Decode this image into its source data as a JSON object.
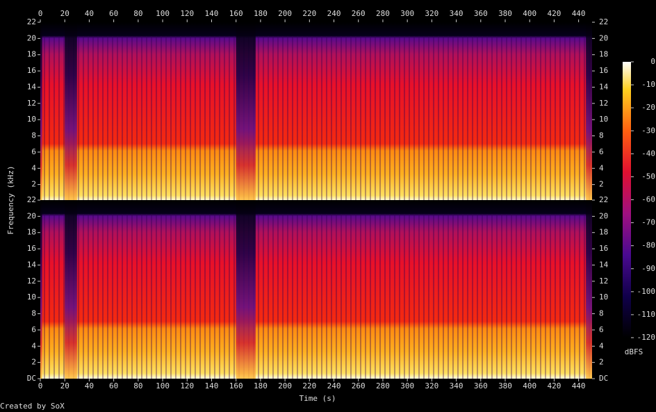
{
  "chart_data": {
    "type": "spectrogram",
    "xlabel": "Time (s)",
    "ylabel": "Frequency (kHz)",
    "xlim": [
      0,
      451
    ],
    "xticks": [
      0,
      20,
      40,
      60,
      80,
      100,
      120,
      140,
      160,
      180,
      200,
      220,
      240,
      260,
      280,
      300,
      320,
      340,
      360,
      380,
      400,
      420,
      440
    ],
    "channels": [
      {
        "ylim": [
          0,
          22
        ],
        "yticks": [
          2,
          4,
          6,
          8,
          10,
          12,
          14,
          16,
          18,
          20,
          22
        ]
      },
      {
        "ylim": [
          0,
          22
        ],
        "yticks": [
          {
            "value": 0,
            "label": "DC"
          },
          2,
          4,
          6,
          8,
          10,
          12,
          14,
          16,
          18,
          20,
          22
        ]
      }
    ],
    "colorbar": {
      "label": "dBFS",
      "lim": [
        -120,
        0
      ],
      "ticks": [
        0,
        -10,
        -20,
        -30,
        -40,
        -50,
        -60,
        -70,
        -80,
        -90,
        -100,
        -110,
        -120
      ]
    },
    "footer": "Created by SoX"
  }
}
